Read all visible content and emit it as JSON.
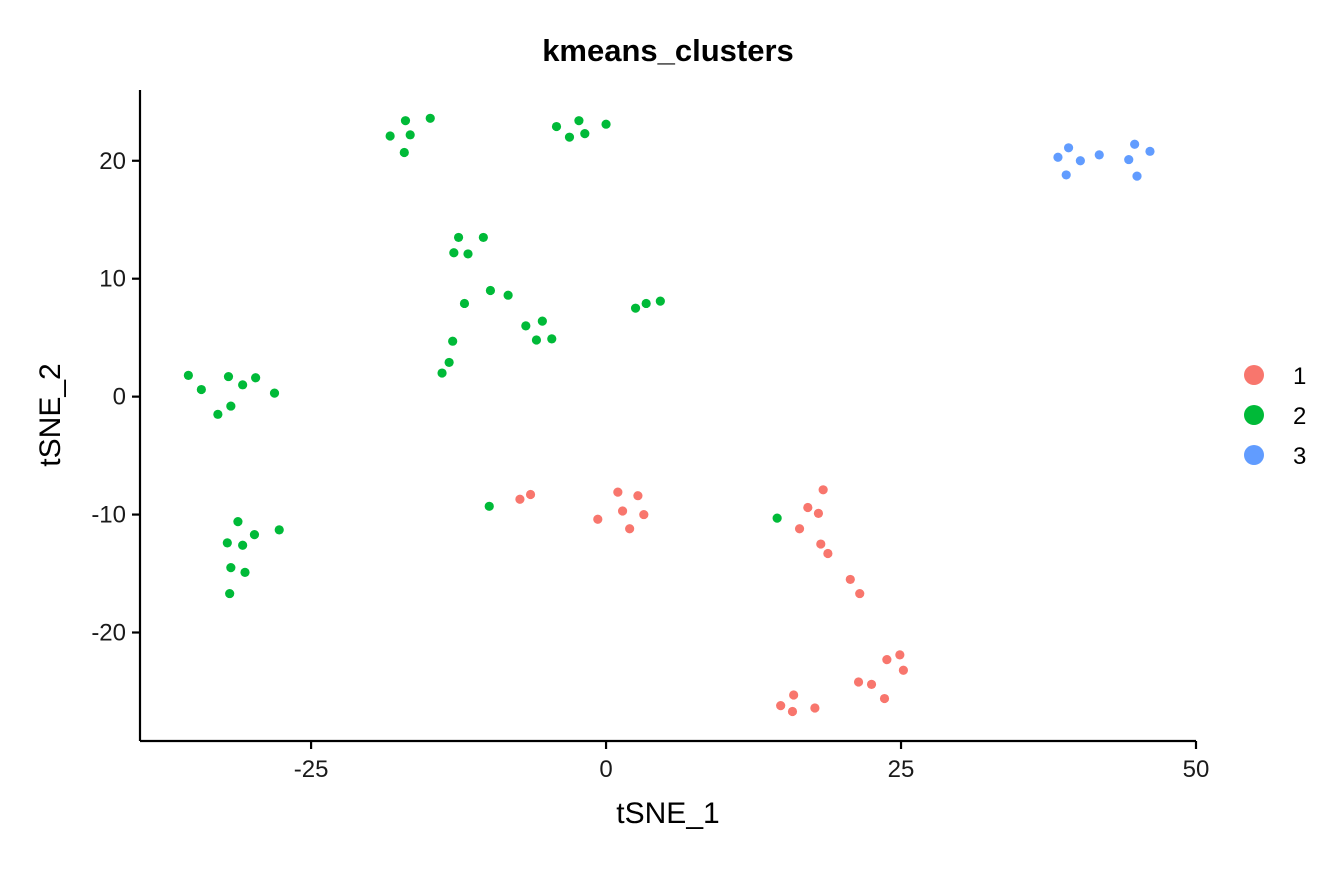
{
  "chart_data": {
    "type": "scatter",
    "title": "kmeans_clusters",
    "xlabel": "tSNE_1",
    "ylabel": "tSNE_2",
    "xlim": [
      -39.5,
      50
    ],
    "ylim": [
      -29.2,
      26
    ],
    "xticks": [
      -25,
      0,
      25,
      50
    ],
    "yticks": [
      -20,
      -10,
      0,
      10,
      20
    ],
    "grid": false,
    "legend": {
      "position": "right",
      "entries": [
        "1",
        "2",
        "3"
      ]
    },
    "series": [
      {
        "name": "1",
        "color": "#F8766D",
        "points": [
          [
            -7.3,
            -8.7
          ],
          [
            -6.4,
            -8.3
          ],
          [
            -0.7,
            -10.4
          ],
          [
            1.0,
            -8.1
          ],
          [
            1.4,
            -9.7
          ],
          [
            2.7,
            -8.4
          ],
          [
            2.0,
            -11.2
          ],
          [
            3.2,
            -10.0
          ],
          [
            18.4,
            -7.9
          ],
          [
            17.1,
            -9.4
          ],
          [
            18.0,
            -9.9
          ],
          [
            16.4,
            -11.2
          ],
          [
            18.2,
            -12.5
          ],
          [
            18.8,
            -13.3
          ],
          [
            20.7,
            -15.5
          ],
          [
            21.5,
            -16.7
          ],
          [
            24.9,
            -21.9
          ],
          [
            23.8,
            -22.3
          ],
          [
            25.2,
            -23.2
          ],
          [
            21.4,
            -24.2
          ],
          [
            22.5,
            -24.4
          ],
          [
            23.6,
            -25.6
          ],
          [
            15.9,
            -25.3
          ],
          [
            14.8,
            -26.2
          ],
          [
            15.8,
            -26.7
          ],
          [
            17.7,
            -26.4
          ]
        ]
      },
      {
        "name": "2",
        "color": "#00BA38",
        "points": [
          [
            -18.3,
            22.1
          ],
          [
            -17.0,
            23.4
          ],
          [
            -16.6,
            22.2
          ],
          [
            -14.9,
            23.6
          ],
          [
            -17.1,
            20.7
          ],
          [
            -4.2,
            22.9
          ],
          [
            -3.1,
            22.0
          ],
          [
            -2.3,
            23.4
          ],
          [
            -1.8,
            22.3
          ],
          [
            0.0,
            23.1
          ],
          [
            -12.5,
            13.5
          ],
          [
            -10.4,
            13.5
          ],
          [
            -12.9,
            12.2
          ],
          [
            -11.7,
            12.1
          ],
          [
            -9.8,
            9.0
          ],
          [
            -8.3,
            8.6
          ],
          [
            -12.0,
            7.9
          ],
          [
            -6.8,
            6.0
          ],
          [
            -5.4,
            6.4
          ],
          [
            -5.9,
            4.8
          ],
          [
            -4.6,
            4.9
          ],
          [
            2.5,
            7.5
          ],
          [
            3.4,
            7.9
          ],
          [
            4.6,
            8.1
          ],
          [
            -13.0,
            4.7
          ],
          [
            -13.3,
            2.9
          ],
          [
            -13.9,
            2.0
          ],
          [
            -35.4,
            1.8
          ],
          [
            -34.3,
            0.6
          ],
          [
            -32.0,
            1.7
          ],
          [
            -30.8,
            1.0
          ],
          [
            -29.7,
            1.6
          ],
          [
            -28.1,
            0.3
          ],
          [
            -32.9,
            -1.5
          ],
          [
            -31.8,
            -0.8
          ],
          [
            -31.2,
            -10.6
          ],
          [
            -29.8,
            -11.7
          ],
          [
            -27.7,
            -11.3
          ],
          [
            -32.1,
            -12.4
          ],
          [
            -30.8,
            -12.6
          ],
          [
            -31.8,
            -14.5
          ],
          [
            -30.6,
            -14.9
          ],
          [
            -31.9,
            -16.7
          ],
          [
            -9.9,
            -9.3
          ],
          [
            14.5,
            -10.3
          ]
        ]
      },
      {
        "name": "3",
        "color": "#619CFF",
        "points": [
          [
            38.3,
            20.3
          ],
          [
            39.2,
            21.1
          ],
          [
            40.2,
            20.0
          ],
          [
            41.8,
            20.5
          ],
          [
            39.0,
            18.8
          ],
          [
            44.3,
            20.1
          ],
          [
            44.8,
            21.4
          ],
          [
            46.1,
            20.8
          ],
          [
            45.0,
            18.7
          ]
        ]
      }
    ]
  }
}
